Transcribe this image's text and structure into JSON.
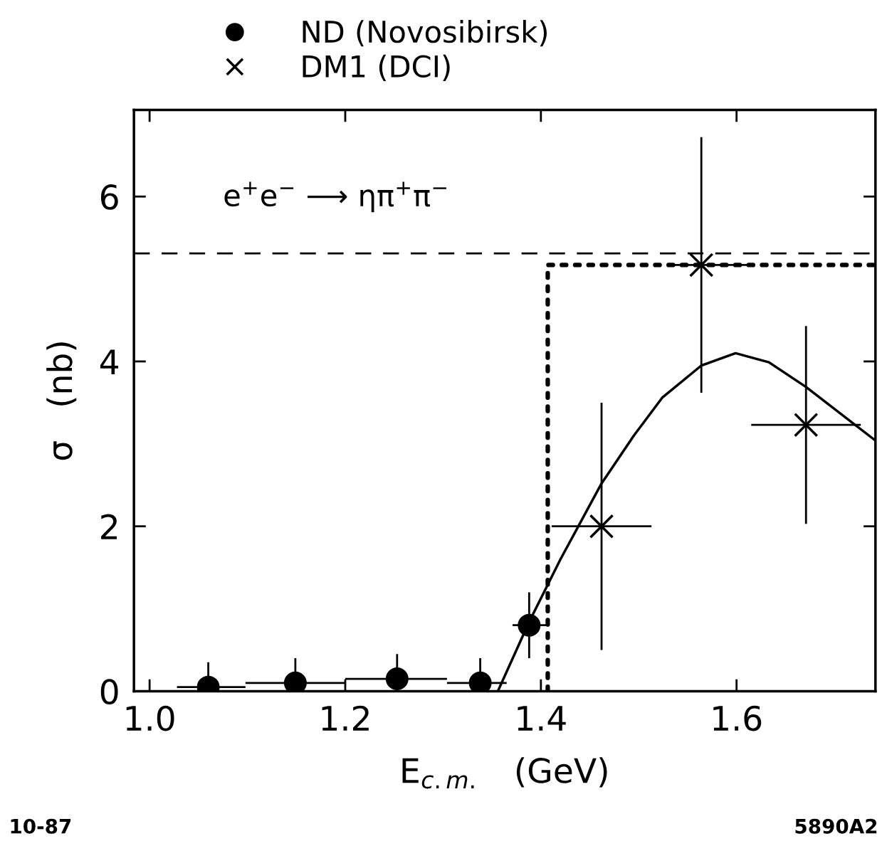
{
  "chart_data": {
    "type": "scatter",
    "xlabel": "E$_{c.m.}$   (GeV)",
    "ylabel": "σ   (nb)",
    "xlim": [
      0.984,
      1.742
    ],
    "ylim": [
      0,
      7.05
    ],
    "xticks": [
      {
        "value": 1.0,
        "label": "1.0"
      },
      {
        "value": 1.2,
        "label": "1.2"
      },
      {
        "value": 1.4,
        "label": "1.4"
      },
      {
        "value": 1.6,
        "label": "1.6"
      }
    ],
    "yticks": [
      0,
      2,
      4,
      6
    ],
    "grid": false,
    "legend": "top left",
    "series": [
      {
        "name": "ND (Novosibirsk)",
        "marker": "circle",
        "color": "#000000",
        "x": [
          1.06,
          1.149,
          1.253,
          1.338,
          1.388
        ],
        "values": [
          0.05,
          0.1,
          0.15,
          0.1,
          0.8
        ],
        "errors": [
          0.3,
          0.3,
          0.3,
          0.3,
          0.4
        ],
        "xerrors": [
          [
            1.028,
            1.098
          ],
          [
            1.098,
            1.2
          ],
          [
            1.2,
            1.304
          ],
          [
            1.304,
            1.365
          ],
          [
            1.371,
            1.407
          ]
        ]
      },
      {
        "name": "DM1 (DCI)",
        "marker": "cross",
        "color": "#000000",
        "x": [
          1.462,
          1.564,
          1.671
        ],
        "values": [
          2.0,
          5.17,
          3.23
        ],
        "errors": [
          1.5,
          1.55,
          1.2
        ],
        "xerrors": [
          [
            1.411,
            1.513
          ],
          [
            1.53,
            1.615
          ],
          [
            1.615,
            1.727
          ]
        ]
      },
      {
        "type": "line",
        "line_style": "solid",
        "color": "#000000",
        "x": [
          1.356,
          1.388,
          1.42,
          1.462,
          1.495,
          1.524,
          1.564,
          1.599,
          1.633,
          1.671,
          1.742
        ],
        "values": [
          0,
          0.84,
          1.6,
          2.52,
          3.1,
          3.56,
          3.95,
          4.1,
          3.99,
          3.69,
          3.04
        ]
      },
      {
        "type": "line",
        "line_style": "dotted",
        "color": "#000000",
        "x": [
          1.407,
          1.407,
          1.742
        ],
        "values": [
          0,
          5.17,
          5.17
        ]
      }
    ],
    "ref_lines": [
      {
        "axis": "y",
        "value": 5.31,
        "line_style": "dashed",
        "color": "#000000"
      }
    ],
    "annotations": [
      "e$^{+}$e$^{−}$ ⟶ ηπ$^{+}$π$^{−}$",
      "10-87",
      "5890A2"
    ]
  }
}
